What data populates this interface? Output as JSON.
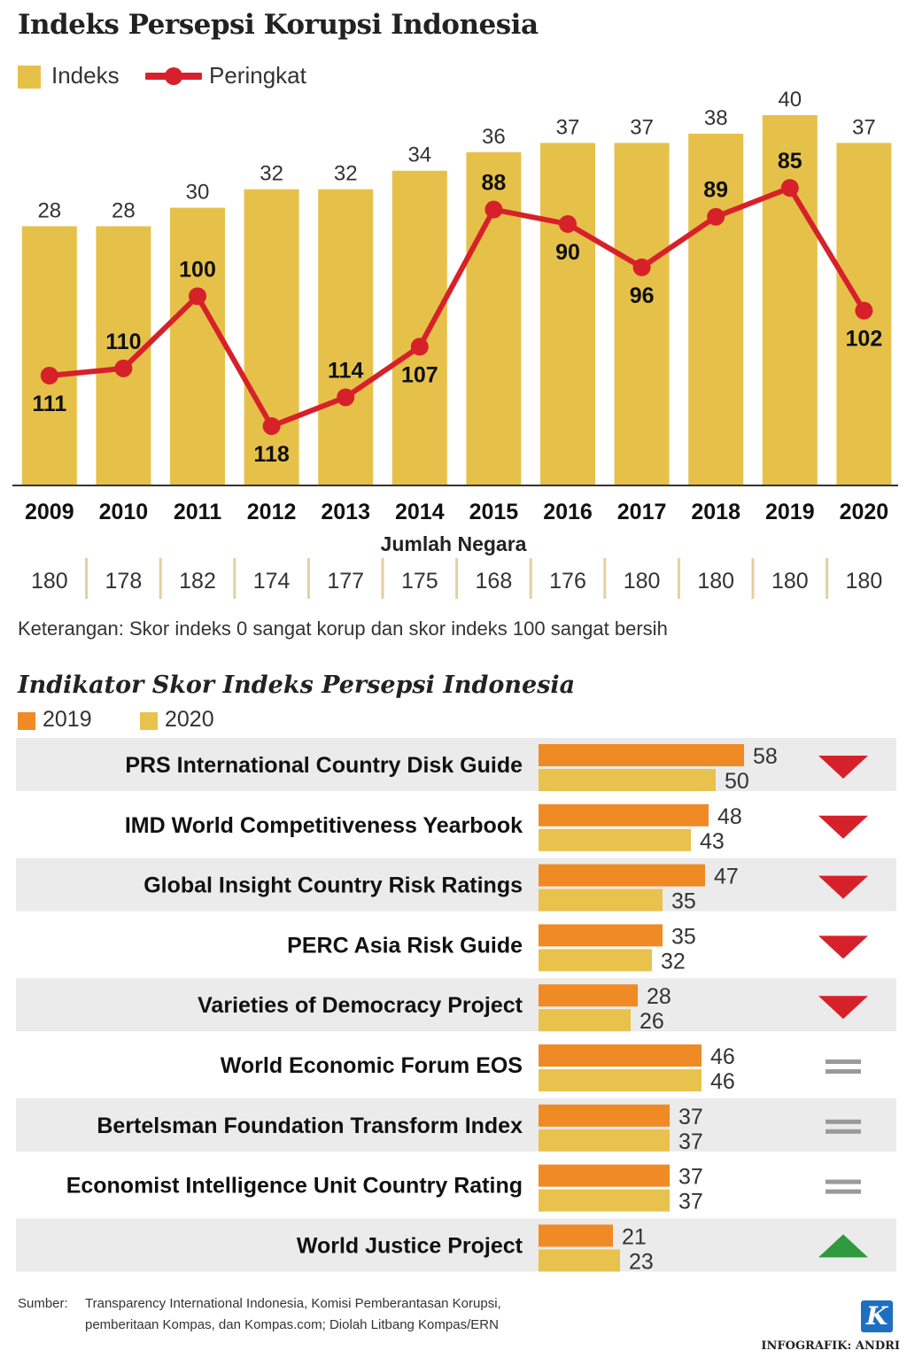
{
  "header": {
    "title": "Indeks Persepsi Korupsi Indonesia"
  },
  "legend": {
    "index_label": "Indeks",
    "rank_label": "Peringkat"
  },
  "colors": {
    "bar": "#e6c14a",
    "line": "#d7212a",
    "orange": "#f08a24",
    "yellow": "#e8c24d",
    "row_bg": "#ebebeb",
    "down": "#d7212a",
    "up": "#2f9a3c",
    "equal": "#9a9a9a"
  },
  "chart_data": [
    {
      "type": "bar+line",
      "title": "Indeks Persepsi Korupsi Indonesia",
      "categories": [
        "2009",
        "2010",
        "2011",
        "2012",
        "2013",
        "2014",
        "2015",
        "2016",
        "2017",
        "2018",
        "2019",
        "2020"
      ],
      "series": [
        {
          "name": "Indeks",
          "type": "bar",
          "values": [
            28,
            28,
            30,
            32,
            32,
            34,
            36,
            37,
            37,
            38,
            40,
            37
          ]
        },
        {
          "name": "Peringkat",
          "type": "line",
          "values": [
            111,
            110,
            100,
            118,
            114,
            107,
            88,
            90,
            96,
            89,
            85,
            102
          ]
        }
      ],
      "countries_title": "Jumlah Negara",
      "countries": [
        180,
        178,
        182,
        174,
        177,
        175,
        168,
        176,
        180,
        180,
        180,
        180
      ]
    },
    {
      "type": "bar",
      "orientation": "horizontal",
      "title": "Indikator Skor Indeks Persepsi Indonesia",
      "series_names": [
        "2019",
        "2020"
      ],
      "rows": [
        {
          "label": "PRS International Country Disk Guide",
          "v2019": 58,
          "v2020": 50,
          "trend": "down"
        },
        {
          "label": "IMD World Competitiveness Yearbook",
          "v2019": 48,
          "v2020": 43,
          "trend": "down"
        },
        {
          "label": "Global Insight Country Risk Ratings",
          "v2019": 47,
          "v2020": 35,
          "trend": "down"
        },
        {
          "label": "PERC Asia Risk Guide",
          "v2019": 35,
          "v2020": 32,
          "trend": "down"
        },
        {
          "label": "Varieties of Democracy Project",
          "v2019": 28,
          "v2020": 26,
          "trend": "down"
        },
        {
          "label": "World Economic Forum EOS",
          "v2019": 46,
          "v2020": 46,
          "trend": "equal"
        },
        {
          "label": "Bertelsman Foundation Transform Index",
          "v2019": 37,
          "v2020": 37,
          "trend": "equal"
        },
        {
          "label": "Economist Intelligence Unit Country Rating",
          "v2019": 37,
          "v2020": 37,
          "trend": "equal"
        },
        {
          "label": "World Justice Project",
          "v2019": 21,
          "v2020": 23,
          "trend": "up"
        }
      ]
    }
  ],
  "note": "Keterangan: Skor indeks 0 sangat korup dan skor indeks 100 sangat bersih",
  "source": {
    "label": "Sumber:",
    "line1": "Transparency International Indonesia, Komisi Pemberantasan Korupsi,",
    "line2": "pemberitaan Kompas, dan Kompas.com; Diolah Litbang Kompas/ERN"
  },
  "credit": "INFOGRAFIK: ANDRI",
  "logo": "K"
}
